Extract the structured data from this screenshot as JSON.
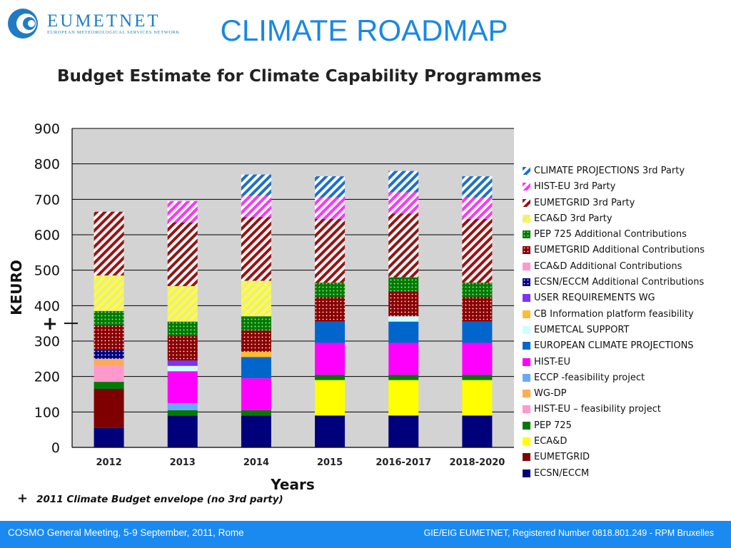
{
  "logo": {
    "name": "EUMETNET",
    "subtitle": "EUROPEAN METEOROLOGICAL SERVICES NETWORK"
  },
  "slide_title": "CLIMATE ROADMAP",
  "footer": {
    "left": "COSMO General Meeting, 5-9 September, 2011, Rome",
    "right": "GIE/EIG EUMETNET, Registered Number 0818.801.249 - RPM Bruxelles"
  },
  "envelope_note": {
    "symbol": "+",
    "text": "2011 Climate Budget envelope (no 3rd party)"
  },
  "colors": {
    "accent": "#1a88e0",
    "footer_bg": "#1a8af0",
    "plot_bg": "#d3d3d3"
  },
  "chart_data": {
    "type": "bar",
    "stacked": true,
    "title": "Budget Estimate for Climate Capability Programmes",
    "xlabel": "Years",
    "ylabel": "KEURO",
    "ylim": [
      0,
      900
    ],
    "yticks": [
      0,
      100,
      200,
      300,
      400,
      500,
      600,
      700,
      800,
      900
    ],
    "grid": true,
    "legend_position": "right",
    "categories": [
      "2012",
      "2013",
      "2014",
      "2015",
      "2016-2017",
      "2018-2020"
    ],
    "envelope_marker": {
      "year": "2011",
      "value": 350,
      "label": "2011 Climate Budget envelope (no 3rd party)"
    },
    "series": [
      {
        "name": "ECSN/ECCM",
        "color": "#00007a",
        "pattern": "solid",
        "values": [
          55,
          90,
          90,
          90,
          90,
          90
        ]
      },
      {
        "name": "EUMETGRID",
        "color": "#7f0000",
        "pattern": "solid",
        "values": [
          110,
          0,
          0,
          0,
          0,
          0
        ]
      },
      {
        "name": "ECA&D",
        "color": "#ffff00",
        "pattern": "solid",
        "values": [
          0,
          0,
          0,
          100,
          100,
          100
        ]
      },
      {
        "name": "PEP 725",
        "color": "#007a00",
        "pattern": "solid",
        "values": [
          20,
          15,
          15,
          15,
          15,
          15
        ]
      },
      {
        "name": "HIST-EU – feasibility project",
        "color": "#ff99cc",
        "pattern": "solid",
        "values": [
          45,
          0,
          0,
          0,
          0,
          0
        ]
      },
      {
        "name": "WG-DP",
        "color": "#ffaa55",
        "pattern": "solid",
        "values": [
          20,
          0,
          0,
          0,
          0,
          0
        ]
      },
      {
        "name": "ECCP -feasibility project",
        "color": "#66aaff",
        "pattern": "solid",
        "values": [
          0,
          20,
          0,
          0,
          0,
          0
        ]
      },
      {
        "name": "HIST-EU",
        "color": "#ff00ff",
        "pattern": "solid",
        "values": [
          0,
          90,
          90,
          90,
          90,
          90
        ]
      },
      {
        "name": "EUROPEAN CLIMATE PROJECTIONS",
        "color": "#0066cc",
        "pattern": "solid",
        "values": [
          0,
          0,
          60,
          60,
          60,
          60
        ]
      },
      {
        "name": "EUMETCAL SUPPORT",
        "color": "#ccffff",
        "pattern": "solid",
        "values": [
          0,
          15,
          0,
          0,
          15,
          0
        ]
      },
      {
        "name": "CB  Information platform feasibility",
        "color": "#ffbb33",
        "pattern": "solid",
        "values": [
          0,
          0,
          15,
          0,
          0,
          0
        ]
      },
      {
        "name": "USER REQUIREMENTS WG",
        "color": "#7a33ff",
        "pattern": "solid",
        "values": [
          0,
          15,
          0,
          0,
          0,
          0
        ]
      },
      {
        "name": "ECSN/ECCM Additional Contributions",
        "color": "#000080",
        "pattern": "dots-blue",
        "values": [
          25,
          0,
          0,
          0,
          0,
          0
        ]
      },
      {
        "name": "ECA&D Additional Contributions",
        "color": "#ff99cc",
        "pattern": "solid",
        "values": [
          0,
          0,
          0,
          0,
          0,
          0
        ]
      },
      {
        "name": "EUMETGRID Additional Contributions",
        "color": "#8b0000",
        "pattern": "dots-red",
        "values": [
          70,
          70,
          60,
          70,
          70,
          70
        ]
      },
      {
        "name": "PEP 725 Additional Contributions",
        "color": "#007a00",
        "pattern": "dots-green",
        "values": [
          40,
          40,
          40,
          40,
          40,
          40
        ]
      },
      {
        "name": "ECA&D 3rd Party",
        "color": "#ffff33",
        "pattern": "stripes-yellow",
        "values": [
          100,
          100,
          100,
          0,
          0,
          0
        ]
      },
      {
        "name": "EUMETGRID 3rd Party",
        "color": "#991111",
        "pattern": "stripes-red",
        "values": [
          180,
          180,
          180,
          180,
          180,
          180
        ]
      },
      {
        "name": "HIST-EU 3rd Party",
        "color": "#ff33ff",
        "pattern": "stripes-magenta",
        "values": [
          0,
          60,
          60,
          60,
          60,
          60
        ]
      },
      {
        "name": "CLIMATE PROJECTIONS 3rd Party",
        "color": "#1a6fd1",
        "pattern": "stripes-blue",
        "values": [
          0,
          0,
          60,
          60,
          60,
          60
        ]
      }
    ]
  }
}
